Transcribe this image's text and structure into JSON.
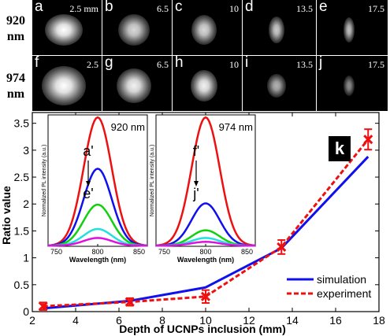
{
  "rows": [
    {
      "label_top": "920",
      "label_bottom": "nm",
      "panels": [
        {
          "letter": "a",
          "depth_label": "2.5 mm",
          "spot_w": 48,
          "spot_h": 40,
          "brightness": 1.0
        },
        {
          "letter": "b",
          "depth_label": "6.5",
          "spot_w": 40,
          "spot_h": 40,
          "brightness": 0.85
        },
        {
          "letter": "c",
          "depth_label": "10",
          "spot_w": 32,
          "spot_h": 38,
          "brightness": 0.85
        },
        {
          "letter": "d",
          "depth_label": "13.5",
          "spot_w": 20,
          "spot_h": 34,
          "brightness": 0.8
        },
        {
          "letter": "e",
          "depth_label": "17.5",
          "spot_w": 14,
          "spot_h": 32,
          "brightness": 0.75
        }
      ]
    },
    {
      "label_top": "974",
      "label_bottom": "nm",
      "panels": [
        {
          "letter": "f",
          "depth_label": "2.5",
          "spot_w": 56,
          "spot_h": 50,
          "brightness": 1.0
        },
        {
          "letter": "g",
          "depth_label": "6.5",
          "spot_w": 44,
          "spot_h": 44,
          "brightness": 0.95
        },
        {
          "letter": "h",
          "depth_label": "10",
          "spot_w": 34,
          "spot_h": 40,
          "brightness": 0.95
        },
        {
          "letter": "i",
          "depth_label": "13.5",
          "spot_w": 24,
          "spot_h": 30,
          "brightness": 0.7
        },
        {
          "letter": "j",
          "depth_label": "17.5",
          "spot_w": 14,
          "spot_h": 26,
          "brightness": 0.55
        }
      ]
    }
  ],
  "panel_k_label": "k",
  "chart_data": {
    "type": "line",
    "xlabel": "Depth of UCNPs inclusion (mm)",
    "ylabel": "Ratio value",
    "xlim": [
      2,
      18
    ],
    "ylim": [
      0,
      3.7
    ],
    "xticks": [
      2,
      4,
      6,
      8,
      10,
      12,
      14,
      16,
      18
    ],
    "yticks": [
      0,
      0.5,
      1,
      1.5,
      2,
      2.5,
      3,
      3.5
    ],
    "legend_position": "bottom-right",
    "series": [
      {
        "name": "simulation",
        "color": "#1010ee",
        "style": "solid",
        "x": [
          2.5,
          6.5,
          10,
          13.5,
          17.5
        ],
        "y": [
          0.06,
          0.2,
          0.45,
          1.18,
          2.88
        ]
      },
      {
        "name": "experiment",
        "color": "#ee1010",
        "style": "dashed",
        "x": [
          2.5,
          6.5,
          10,
          13.5,
          17.5
        ],
        "y": [
          0.1,
          0.18,
          0.28,
          1.2,
          3.2
        ],
        "err": [
          0.07,
          0.07,
          0.12,
          0.13,
          0.19
        ]
      }
    ],
    "insets": [
      {
        "label": "920 nm",
        "arrow_top": "a'",
        "arrow_bottom": "e'",
        "xlabel": "Wavelength (nm)",
        "ylabel": "Normalized PL intensity (a.u.)",
        "xlim": [
          740,
          860
        ],
        "xticks": [
          750,
          800,
          850
        ],
        "ylim": [
          0,
          1
        ],
        "peak_x": 800,
        "peaks": [
          {
            "color": "#ee1010",
            "peak": 1.0
          },
          {
            "color": "#1010ee",
            "peak": 0.6
          },
          {
            "color": "#10d010",
            "peak": 0.32
          },
          {
            "color": "#20e0e0",
            "peak": 0.13
          },
          {
            "color": "#e010e0",
            "peak": 0.06
          }
        ]
      },
      {
        "label": "974 nm",
        "arrow_top": "f'",
        "arrow_bottom": "j'",
        "xlabel": "Wavelength (nm)",
        "ylabel": "Normalized PL intensity (a.u.)",
        "xlim": [
          740,
          860
        ],
        "xticks": [
          750,
          800,
          850
        ],
        "ylim": [
          0,
          1
        ],
        "peak_x": 800,
        "peaks": [
          {
            "color": "#ee1010",
            "peak": 1.0
          },
          {
            "color": "#1010ee",
            "peak": 0.33
          },
          {
            "color": "#10d010",
            "peak": 0.12
          },
          {
            "color": "#20e0e0",
            "peak": 0.06
          },
          {
            "color": "#e010e0",
            "peak": 0.03
          }
        ]
      }
    ]
  }
}
